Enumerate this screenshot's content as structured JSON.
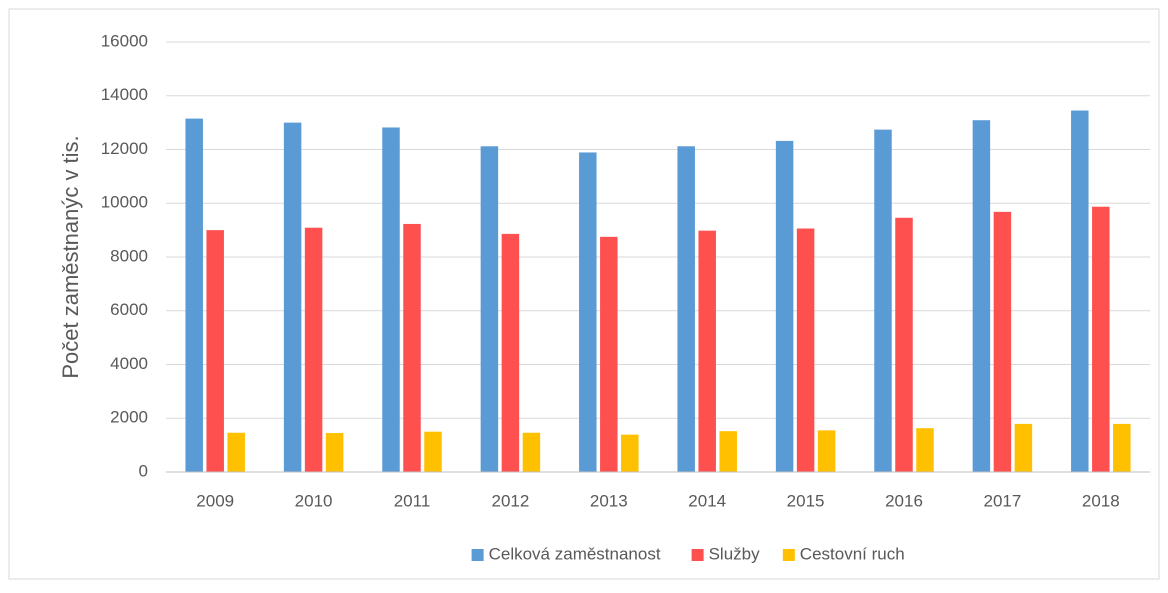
{
  "chart_data": {
    "type": "bar",
    "y_label": "Počet zaměstnanýc v tis.",
    "categories": [
      "2009",
      "2010",
      "2011",
      "2012",
      "2013",
      "2014",
      "2015",
      "2016",
      "2017",
      "2018"
    ],
    "series": [
      {
        "name": "Celková zaměstnanost",
        "color": "#5b9bd5",
        "values": [
          13150,
          13000,
          12820,
          12120,
          11890,
          12120,
          12320,
          12740,
          13090,
          13450
        ]
      },
      {
        "name": "Služby",
        "color": "#ff5050",
        "values": [
          9000,
          9090,
          9230,
          8860,
          8750,
          8980,
          9060,
          9460,
          9680,
          9870
        ]
      },
      {
        "name": "Cestovní ruch",
        "color": "#ffc000",
        "values": [
          1460,
          1450,
          1500,
          1460,
          1390,
          1520,
          1550,
          1630,
          1790,
          1790
        ]
      }
    ],
    "ylim": [
      0,
      16000
    ],
    "yticks": [
      0,
      2000,
      4000,
      6000,
      8000,
      10000,
      12000,
      14000,
      16000
    ],
    "grid": true,
    "legend": "bottom"
  }
}
